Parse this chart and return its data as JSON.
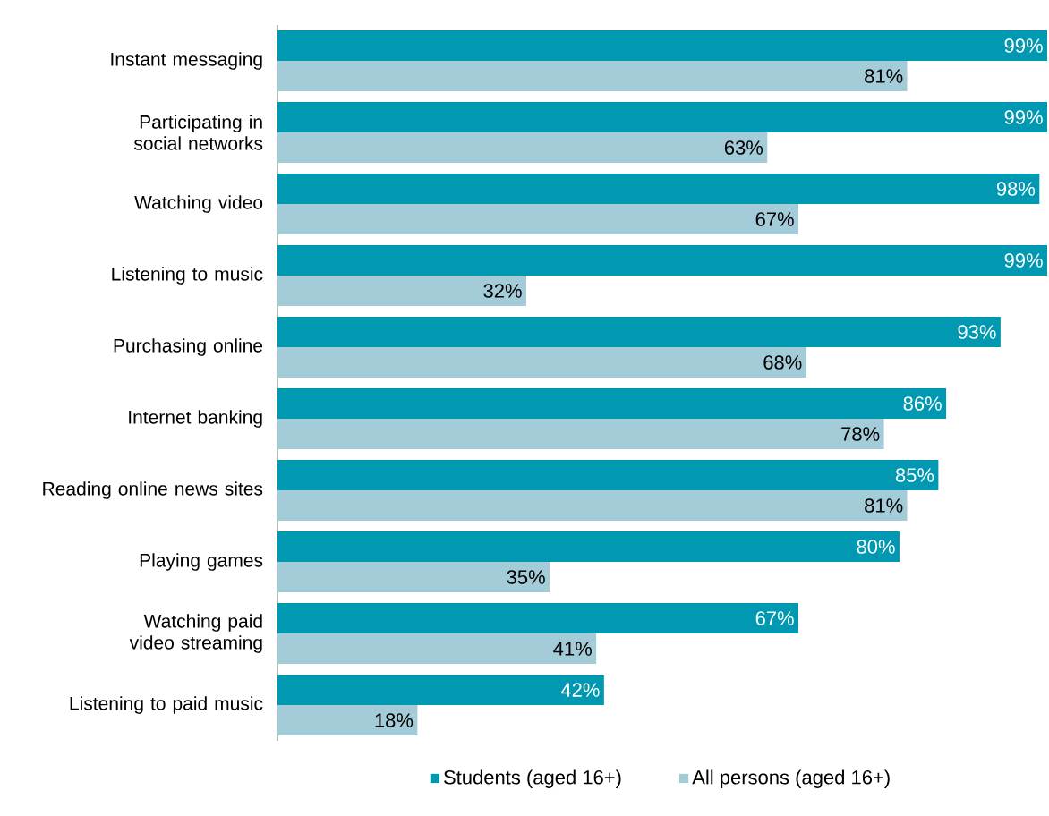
{
  "chart_data": {
    "type": "bar",
    "orientation": "horizontal",
    "categories": [
      "Instant messaging",
      "Participating in social networks",
      "Watching video",
      "Listening to music",
      "Purchasing online",
      "Internet banking",
      "Reading online news sites",
      "Playing games",
      "Watching paid video streaming",
      "Listening to paid music"
    ],
    "series": [
      {
        "name": "Students (aged 16+)",
        "color": "#0099b1",
        "values": [
          99,
          99,
          98,
          99,
          93,
          86,
          85,
          80,
          67,
          42
        ],
        "value_labels": [
          "99%",
          "99%",
          "98%",
          "99%",
          "93%",
          "86%",
          "85%",
          "80%",
          "67%",
          "42%"
        ]
      },
      {
        "name": "All persons (aged 16+)",
        "color": "#a4cbd8",
        "values": [
          81,
          63,
          67,
          32,
          68,
          78,
          81,
          35,
          41,
          18
        ],
        "value_labels": [
          "81%",
          "63%",
          "67%",
          "32%",
          "68%",
          "78%",
          "81%",
          "35%",
          "41%",
          "18%"
        ]
      }
    ],
    "legend": "bottom"
  }
}
